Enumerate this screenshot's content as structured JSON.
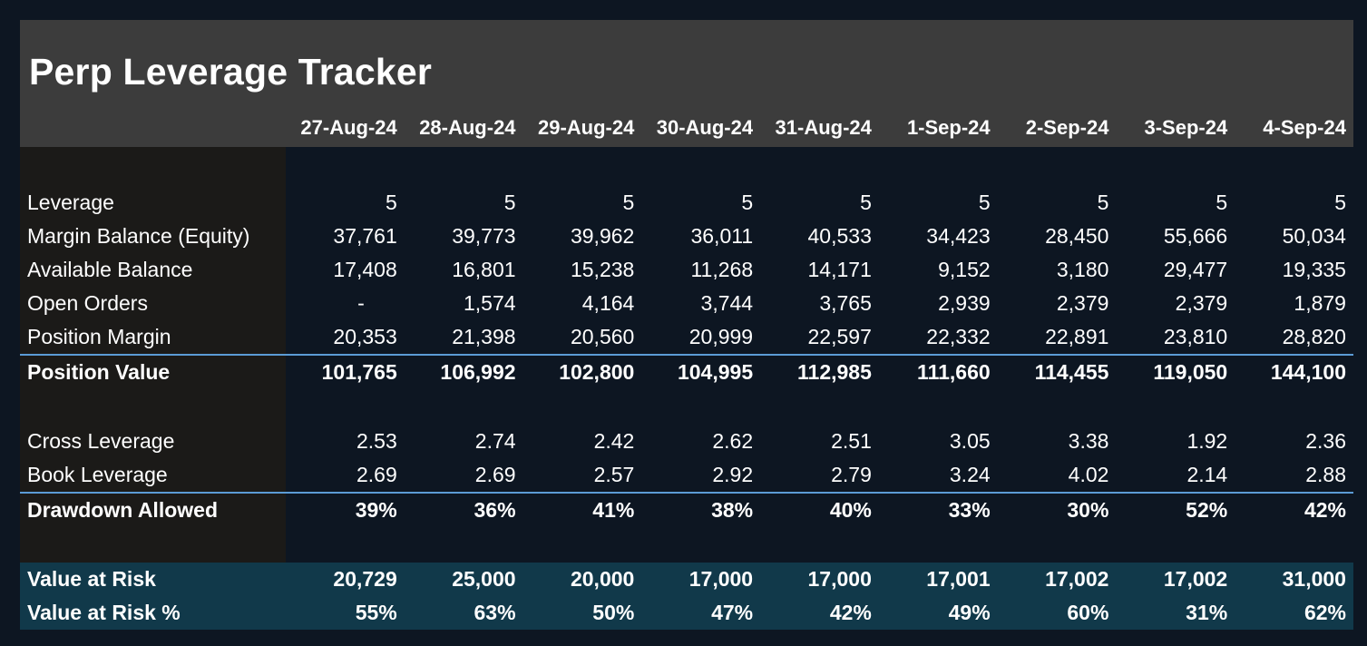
{
  "title": "Perp Leverage Tracker",
  "colors": {
    "page_bg": "#0d1622",
    "header_bg": "#3c3c3c",
    "label_column_bg": "#1b1a18",
    "value_at_risk_band_bg": "#11394a",
    "separator_line_blue": "#5b9bd5",
    "text": "#ffffff"
  },
  "columns": [
    "27-Aug-24",
    "28-Aug-24",
    "29-Aug-24",
    "30-Aug-24",
    "31-Aug-24",
    "1-Sep-24",
    "2-Sep-24",
    "3-Sep-24",
    "4-Sep-24"
  ],
  "rows": [
    {
      "style": "spacer"
    },
    {
      "style": "normal",
      "label": "Leverage",
      "values": [
        "5",
        "5",
        "5",
        "5",
        "5",
        "5",
        "5",
        "5",
        "5"
      ]
    },
    {
      "style": "normal",
      "label": "Margin Balance (Equity)",
      "values": [
        "37,761",
        "39,773",
        "39,962",
        "36,011",
        "40,533",
        "34,423",
        "28,450",
        "55,666",
        "50,034"
      ]
    },
    {
      "style": "normal",
      "label": "Available Balance",
      "values": [
        "17,408",
        "16,801",
        "15,238",
        "11,268",
        "14,171",
        "9,152",
        "3,180",
        "29,477",
        "19,335"
      ]
    },
    {
      "style": "normal",
      "label": "Open Orders",
      "values": [
        "-",
        "1,574",
        "4,164",
        "3,744",
        "3,765",
        "2,939",
        "2,379",
        "2,379",
        "1,879"
      ]
    },
    {
      "style": "normal",
      "label": "Position Margin",
      "values": [
        "20,353",
        "21,398",
        "20,560",
        "20,999",
        "22,597",
        "22,332",
        "22,891",
        "23,810",
        "28,820"
      ]
    },
    {
      "style": "total",
      "label": "Position Value",
      "values": [
        "101,765",
        "106,992",
        "102,800",
        "104,995",
        "112,985",
        "111,660",
        "114,455",
        "119,050",
        "144,100"
      ]
    },
    {
      "style": "spacer"
    },
    {
      "style": "normal",
      "label": "Cross Leverage",
      "values": [
        "2.53",
        "2.74",
        "2.42",
        "2.62",
        "2.51",
        "3.05",
        "3.38",
        "1.92",
        "2.36"
      ]
    },
    {
      "style": "normal",
      "label": "Book Leverage",
      "values": [
        "2.69",
        "2.69",
        "2.57",
        "2.92",
        "2.79",
        "3.24",
        "4.02",
        "2.14",
        "2.88"
      ]
    },
    {
      "style": "total",
      "label": "Drawdown Allowed",
      "values": [
        "39%",
        "36%",
        "41%",
        "38%",
        "40%",
        "33%",
        "30%",
        "52%",
        "42%"
      ]
    },
    {
      "style": "spacer"
    },
    {
      "style": "var",
      "label": "Value at Risk",
      "values": [
        "20,729",
        "25,000",
        "20,000",
        "17,000",
        "17,000",
        "17,001",
        "17,002",
        "17,002",
        "31,000"
      ]
    },
    {
      "style": "var",
      "label": "Value at Risk %",
      "values": [
        "55%",
        "63%",
        "50%",
        "47%",
        "42%",
        "49%",
        "60%",
        "31%",
        "62%"
      ]
    }
  ]
}
